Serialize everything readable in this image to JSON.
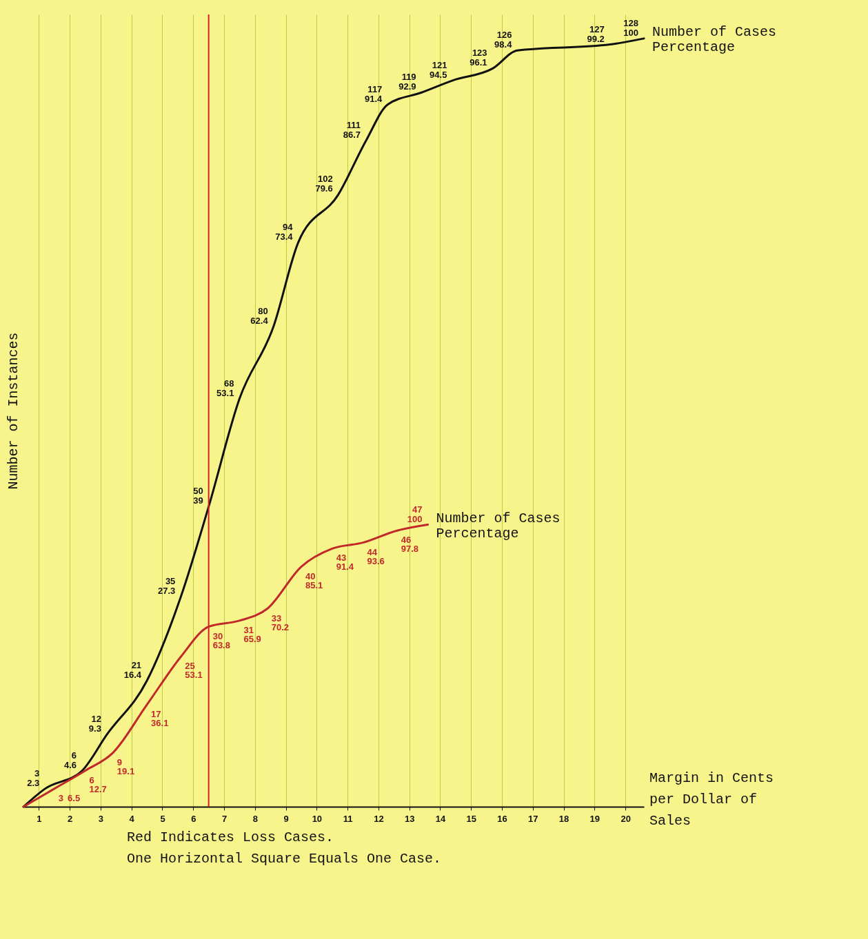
{
  "chart_data": {
    "type": "line",
    "ylabel": "Number of Instances",
    "xlabel": "Margin in Cents per Dollar of Sales",
    "xlim": [
      0.5,
      20.6
    ],
    "xticks": [
      1,
      2,
      3,
      4,
      5,
      6,
      7,
      8,
      9,
      10,
      11,
      12,
      13,
      14,
      15,
      16,
      17,
      18,
      19,
      20
    ],
    "ylim": [
      0,
      132
    ],
    "tick_labels": "x",
    "grid": "x",
    "series": [
      {
        "name": "Number of Cases",
        "color": "#111111",
        "x": [
          0.5,
          1.2,
          2.4,
          3.2,
          4.5,
          5.6,
          6.5,
          7.5,
          8.6,
          9.4,
          10.7,
          11.6,
          12.3,
          13.4,
          14.4,
          15.7,
          16.5,
          19.5,
          20.6
        ],
        "values": [
          0,
          3,
          6,
          12,
          21,
          35,
          50,
          68,
          80,
          94,
          102,
          111,
          117,
          119,
          121,
          123,
          126,
          127,
          128
        ],
        "value_labels": [
          null,
          "3",
          "6",
          "12",
          "21",
          "35",
          "50",
          "68",
          "80",
          "94",
          "102",
          "111",
          "117",
          "119",
          "121",
          "123",
          "126",
          "127",
          "128"
        ]
      },
      {
        "name": "Number of Cases",
        "color": "#c0282a",
        "x": [
          0.5,
          1.5,
          2.5,
          3.4,
          4.5,
          5.6,
          6.5,
          7.5,
          8.4,
          9.5,
          10.5,
          11.5,
          12.6,
          13.6
        ],
        "values": [
          0,
          3,
          6,
          9,
          17,
          25,
          30,
          31,
          33,
          40,
          43,
          44,
          46,
          47
        ],
        "value_labels": [
          null,
          "3",
          "6",
          "9",
          "17",
          "25",
          "30",
          "31",
          "33",
          "40",
          "43",
          "44",
          "46",
          "47"
        ]
      }
    ],
    "ref_lines": [
      {
        "axis": "x",
        "value": 6.5,
        "color": "#d42020"
      }
    ],
    "annotations": [
      {
        "text": "2.3",
        "x": 1.2,
        "y": 3
      },
      {
        "text": "4.6",
        "x": 2.4,
        "y": 6
      },
      {
        "text": "9.3",
        "x": 3.2,
        "y": 12
      },
      {
        "text": "16.4",
        "x": 4.5,
        "y": 21
      },
      {
        "text": "27.3",
        "x": 5.6,
        "y": 35
      },
      {
        "text": "39",
        "x": 6.5,
        "y": 50
      },
      {
        "text": "53.1",
        "x": 7.5,
        "y": 68
      },
      {
        "text": "62.4",
        "x": 8.6,
        "y": 80
      },
      {
        "text": "73.4",
        "x": 9.4,
        "y": 94
      },
      {
        "text": "79.6",
        "x": 10.7,
        "y": 102
      },
      {
        "text": "86.7",
        "x": 11.6,
        "y": 111
      },
      {
        "text": "91.4",
        "x": 12.3,
        "y": 117
      },
      {
        "text": "92.9",
        "x": 13.4,
        "y": 119
      },
      {
        "text": "94.5",
        "x": 14.4,
        "y": 121
      },
      {
        "text": "96.1",
        "x": 15.7,
        "y": 123
      },
      {
        "text": "98.4",
        "x": 16.5,
        "y": 126
      },
      {
        "text": "99.2",
        "x": 19.5,
        "y": 127
      },
      {
        "text": "100",
        "x": 20.6,
        "y": 128
      },
      {
        "text": "Percentage",
        "x": 20.6,
        "y": 128
      },
      {
        "text": "6.5",
        "x": 1.5,
        "y": 3
      },
      {
        "text": "12.7",
        "x": 2.5,
        "y": 6
      },
      {
        "text": "19.1",
        "x": 3.4,
        "y": 9
      },
      {
        "text": "36.1",
        "x": 4.5,
        "y": 17
      },
      {
        "text": "53.1",
        "x": 5.6,
        "y": 25
      },
      {
        "text": "63.8",
        "x": 6.5,
        "y": 30
      },
      {
        "text": "65.9",
        "x": 7.5,
        "y": 31
      },
      {
        "text": "70.2",
        "x": 8.4,
        "y": 33
      },
      {
        "text": "85.1",
        "x": 9.5,
        "y": 40
      },
      {
        "text": "91.4",
        "x": 10.5,
        "y": 43
      },
      {
        "text": "93.6",
        "x": 11.5,
        "y": 44
      },
      {
        "text": "97.8",
        "x": 12.6,
        "y": 46
      },
      {
        "text": "100",
        "x": 13.6,
        "y": 47
      },
      {
        "text": "Percentage",
        "x": 13.6,
        "y": 47
      },
      "Red Indicates Loss Cases.",
      "One Horizontal Square Equals One Case."
    ]
  }
}
